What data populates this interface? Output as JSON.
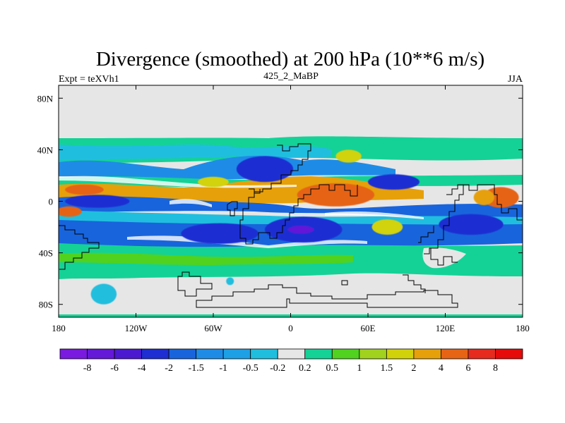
{
  "chart_data": {
    "type": "heatmap",
    "title": "Divergence (smoothed) at 200 hPa (10**6 m/s)",
    "subtitle_left": "Expt = teXVh1",
    "subtitle_center": "425_2_MaBP",
    "subtitle_right": "JJA",
    "x_range": [
      -180,
      180
    ],
    "y_range": [
      -90,
      90
    ],
    "x_ticks": [
      {
        "value": -180,
        "label": "180"
      },
      {
        "value": -120,
        "label": "120W"
      },
      {
        "value": -60,
        "label": "60W"
      },
      {
        "value": 0,
        "label": "0"
      },
      {
        "value": 60,
        "label": "60E"
      },
      {
        "value": 120,
        "label": "120E"
      },
      {
        "value": 180,
        "label": "180"
      }
    ],
    "y_ticks": [
      {
        "value": 80,
        "label": "80N"
      },
      {
        "value": 40,
        "label": "40N"
      },
      {
        "value": 0,
        "label": "0"
      },
      {
        "value": -40,
        "label": "40S"
      },
      {
        "value": -80,
        "label": "80S"
      }
    ],
    "colorbar": {
      "labels": [
        "-8",
        "-6",
        "-4",
        "-2",
        "-1.5",
        "-1",
        "-0.5",
        "-0.2",
        "0.2",
        "0.5",
        "1",
        "1.5",
        "2",
        "4",
        "6",
        "8"
      ],
      "colors": [
        "#7a1ae0",
        "#6418d8",
        "#4b19d0",
        "#1e2ed2",
        "#1864dc",
        "#1e8ce6",
        "#1ea0e6",
        "#20bede",
        "#e6e6e6",
        "#14d296",
        "#50d21e",
        "#a0d21e",
        "#d2d20a",
        "#e6a00a",
        "#e66414",
        "#e62a1e",
        "#e60a0a"
      ]
    },
    "features": [
      {
        "level": 3,
        "lon": -55,
        "lat": -25,
        "rx": 30,
        "ry": 8
      },
      {
        "level": 3,
        "lon": 10,
        "lat": -22,
        "rx": 30,
        "ry": 10
      },
      {
        "level": 3,
        "lon": -20,
        "lat": 25,
        "rx": 22,
        "ry": 10
      },
      {
        "level": 3,
        "lon": -150,
        "lat": 0,
        "rx": 25,
        "ry": 5
      },
      {
        "level": 3,
        "lon": 140,
        "lat": -18,
        "rx": 25,
        "ry": 8
      },
      {
        "level": 3,
        "lon": 80,
        "lat": 15,
        "rx": 20,
        "ry": 6
      },
      {
        "level": 1,
        "lon": 8,
        "lat": -22,
        "rx": 10,
        "ry": 3
      },
      {
        "level": 14,
        "lon": 35,
        "lat": 5,
        "rx": 30,
        "ry": 9
      },
      {
        "level": 14,
        "lon": -160,
        "lat": 9,
        "rx": 15,
        "ry": 4
      },
      {
        "level": 14,
        "lon": -172,
        "lat": -8,
        "rx": 10,
        "ry": 4
      },
      {
        "level": 14,
        "lon": 163,
        "lat": 3,
        "rx": 14,
        "ry": 8
      },
      {
        "level": 13,
        "lon": 150,
        "lat": 3,
        "rx": 8,
        "ry": 6
      },
      {
        "level": 12,
        "lon": 75,
        "lat": -20,
        "rx": 12,
        "ry": 6
      },
      {
        "level": 12,
        "lon": -60,
        "lat": 15,
        "rx": 12,
        "ry": 4
      },
      {
        "level": 12,
        "lon": 45,
        "lat": 35,
        "rx": 10,
        "ry": 5
      },
      {
        "level": 7,
        "lon": -145,
        "lat": -72,
        "rx": 10,
        "ry": 8
      },
      {
        "level": 7,
        "lon": -47,
        "lat": -62,
        "rx": 3,
        "ry": 3
      }
    ]
  }
}
